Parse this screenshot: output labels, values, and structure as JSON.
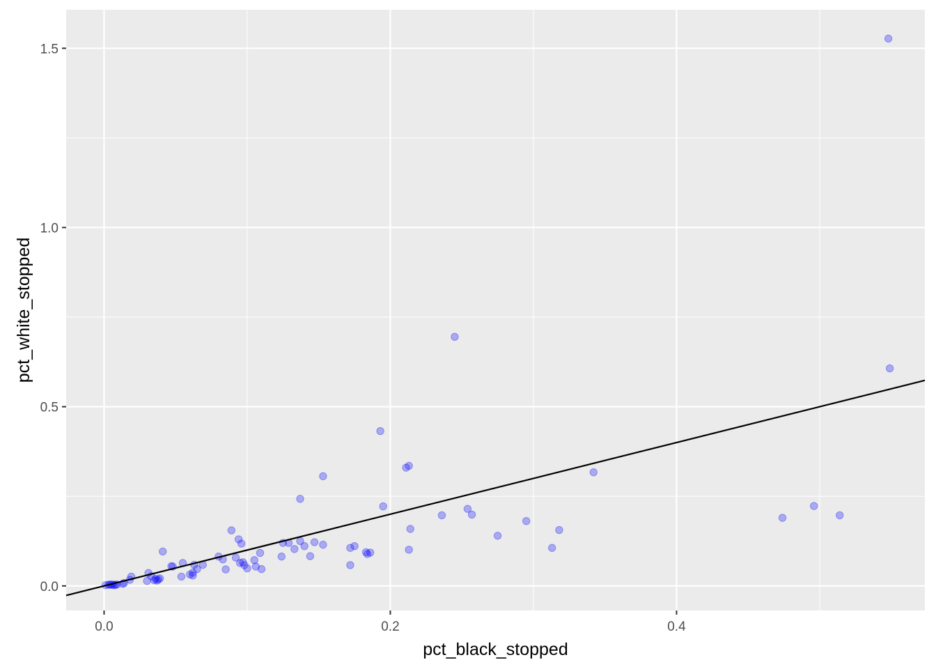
{
  "chart_data": {
    "type": "scatter",
    "xlabel": "pct_black_stopped",
    "ylabel": "pct_white_stopped",
    "xlim": [
      -0.0265,
      0.5735
    ],
    "ylim": [
      -0.0685,
      1.6075
    ],
    "x_ticks": [
      0.0,
      0.2,
      0.4
    ],
    "x_tick_labels": [
      "0.0",
      "0.2",
      "0.4"
    ],
    "y_ticks": [
      0.0,
      0.5,
      1.0,
      1.5
    ],
    "y_tick_labels": [
      "0.0",
      "0.5",
      "1.0",
      "1.5"
    ],
    "grid": true,
    "point_color": "#0000ff",
    "point_alpha": 0.28,
    "panel_color": "#ebebeb",
    "grid_color": "#ffffff",
    "line_color": "#000000",
    "fit_line": {
      "intercept": 0.0,
      "slope": 1.0
    },
    "points": [
      [
        0.001,
        0.002
      ],
      [
        0.003,
        0.003
      ],
      [
        0.004,
        0.004
      ],
      [
        0.005,
        0.003
      ],
      [
        0.006,
        0.004
      ],
      [
        0.007,
        0.002
      ],
      [
        0.008,
        0.003
      ],
      [
        0.009,
        0.004
      ],
      [
        0.013,
        0.006
      ],
      [
        0.014,
        0.008
      ],
      [
        0.018,
        0.017
      ],
      [
        0.019,
        0.026
      ],
      [
        0.03,
        0.014
      ],
      [
        0.031,
        0.036
      ],
      [
        0.033,
        0.027
      ],
      [
        0.035,
        0.016
      ],
      [
        0.036,
        0.02
      ],
      [
        0.037,
        0.015
      ],
      [
        0.038,
        0.018
      ],
      [
        0.039,
        0.021
      ],
      [
        0.041,
        0.096
      ],
      [
        0.047,
        0.055
      ],
      [
        0.048,
        0.054
      ],
      [
        0.054,
        0.026
      ],
      [
        0.055,
        0.064
      ],
      [
        0.06,
        0.032
      ],
      [
        0.062,
        0.029
      ],
      [
        0.062,
        0.037
      ],
      [
        0.063,
        0.059
      ],
      [
        0.065,
        0.047
      ],
      [
        0.069,
        0.059
      ],
      [
        0.08,
        0.082
      ],
      [
        0.083,
        0.074
      ],
      [
        0.085,
        0.046
      ],
      [
        0.089,
        0.155
      ],
      [
        0.092,
        0.079
      ],
      [
        0.094,
        0.13
      ],
      [
        0.095,
        0.064
      ],
      [
        0.096,
        0.118
      ],
      [
        0.097,
        0.066
      ],
      [
        0.098,
        0.058
      ],
      [
        0.1,
        0.049
      ],
      [
        0.105,
        0.072
      ],
      [
        0.106,
        0.054
      ],
      [
        0.109,
        0.092
      ],
      [
        0.11,
        0.047
      ],
      [
        0.124,
        0.082
      ],
      [
        0.125,
        0.12
      ],
      [
        0.129,
        0.12
      ],
      [
        0.133,
        0.103
      ],
      [
        0.137,
        0.243
      ],
      [
        0.137,
        0.125
      ],
      [
        0.14,
        0.111
      ],
      [
        0.144,
        0.083
      ],
      [
        0.147,
        0.122
      ],
      [
        0.153,
        0.306
      ],
      [
        0.153,
        0.115
      ],
      [
        0.172,
        0.058
      ],
      [
        0.172,
        0.106
      ],
      [
        0.175,
        0.111
      ],
      [
        0.183,
        0.094
      ],
      [
        0.184,
        0.089
      ],
      [
        0.186,
        0.093
      ],
      [
        0.193,
        0.432
      ],
      [
        0.195,
        0.222
      ],
      [
        0.211,
        0.33
      ],
      [
        0.213,
        0.335
      ],
      [
        0.213,
        0.101
      ],
      [
        0.214,
        0.159
      ],
      [
        0.236,
        0.197
      ],
      [
        0.245,
        0.695
      ],
      [
        0.254,
        0.215
      ],
      [
        0.257,
        0.199
      ],
      [
        0.275,
        0.14
      ],
      [
        0.295,
        0.181
      ],
      [
        0.313,
        0.106
      ],
      [
        0.318,
        0.156
      ],
      [
        0.342,
        0.317
      ],
      [
        0.474,
        0.19
      ],
      [
        0.496,
        0.223
      ],
      [
        0.514,
        0.197
      ],
      [
        0.548,
        1.527
      ],
      [
        0.549,
        0.607
      ]
    ]
  }
}
